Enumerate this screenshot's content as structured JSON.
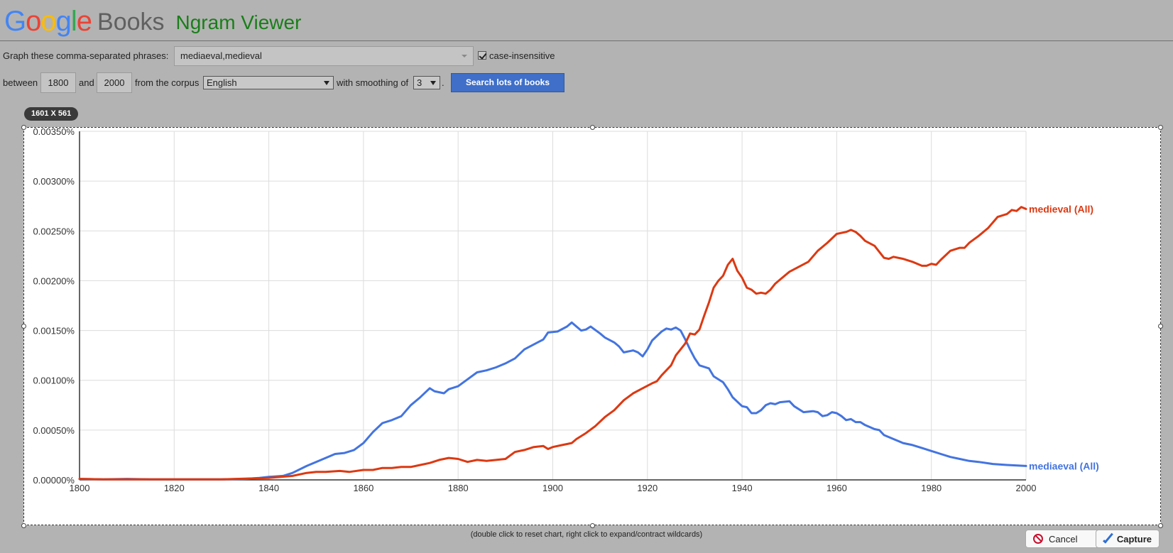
{
  "header": {
    "logo_letters": [
      {
        "ch": "G",
        "color": "#4285f4"
      },
      {
        "ch": "o",
        "color": "#ea4335"
      },
      {
        "ch": "o",
        "color": "#fbbc05"
      },
      {
        "ch": "g",
        "color": "#4285f4"
      },
      {
        "ch": "l",
        "color": "#34a853"
      },
      {
        "ch": "e",
        "color": "#ea4335"
      }
    ],
    "books": "Books",
    "ngram": "Ngram Viewer"
  },
  "form": {
    "phrases_label": "Graph these comma-separated phrases:",
    "phrases_value": "mediaeval,medieval",
    "case_insensitive_label": "case-insensitive",
    "case_insensitive_checked": true,
    "between_label": "between",
    "year_start": "1800",
    "and_label": "and",
    "year_end": "2000",
    "corpus_label": "from the corpus",
    "corpus_value": "English",
    "smoothing_label": "with smoothing of",
    "smoothing_value": "3",
    "period": ".",
    "search_button": "Search lots of books"
  },
  "capture": {
    "dimensions_badge": "1601 X 561",
    "hint": "(double click to reset chart, right click to expand/contract wildcards)",
    "cancel_label": "Cancel",
    "capture_label": "Capture"
  },
  "colors": {
    "mediaeval": "#4374e0",
    "medieval": "#dc3912",
    "grid": "#dcdcdc"
  },
  "chart_data": {
    "type": "line",
    "x_range": [
      1800,
      2000
    ],
    "y_range": [
      0,
      0.0035
    ],
    "y_unit": "%",
    "x_ticks": [
      1800,
      1820,
      1840,
      1860,
      1880,
      1900,
      1920,
      1940,
      1960,
      1980,
      2000
    ],
    "y_ticks": [
      "0.00000%",
      "0.00050%",
      "0.00100%",
      "0.00150%",
      "0.00200%",
      "0.00250%",
      "0.00300%",
      "0.00350%"
    ],
    "grid": true,
    "legend": "line-end labels",
    "series": [
      {
        "name": "mediaeval (All)",
        "color": "#4374e0",
        "points": [
          [
            1800,
            1e-05
          ],
          [
            1805,
            5e-06
          ],
          [
            1810,
            1e-05
          ],
          [
            1815,
            5e-06
          ],
          [
            1820,
            5e-06
          ],
          [
            1825,
            5e-06
          ],
          [
            1830,
            5e-06
          ],
          [
            1835,
            1e-05
          ],
          [
            1838,
            2e-05
          ],
          [
            1840,
            3e-05
          ],
          [
            1843,
            4e-05
          ],
          [
            1845,
            7e-05
          ],
          [
            1848,
            0.00014
          ],
          [
            1850,
            0.00018
          ],
          [
            1852,
            0.00022
          ],
          [
            1854,
            0.00026
          ],
          [
            1856,
            0.00027
          ],
          [
            1858,
            0.0003
          ],
          [
            1860,
            0.00037
          ],
          [
            1862,
            0.00048
          ],
          [
            1864,
            0.00057
          ],
          [
            1866,
            0.0006
          ],
          [
            1868,
            0.00064
          ],
          [
            1870,
            0.00075
          ],
          [
            1872,
            0.00083
          ],
          [
            1874,
            0.00092
          ],
          [
            1875,
            0.00089
          ],
          [
            1877,
            0.00087
          ],
          [
            1878,
            0.00091
          ],
          [
            1880,
            0.00094
          ],
          [
            1882,
            0.00101
          ],
          [
            1884,
            0.00108
          ],
          [
            1886,
            0.0011
          ],
          [
            1888,
            0.00113
          ],
          [
            1890,
            0.00117
          ],
          [
            1892,
            0.00122
          ],
          [
            1894,
            0.00131
          ],
          [
            1896,
            0.00136
          ],
          [
            1898,
            0.00141
          ],
          [
            1899,
            0.00148
          ],
          [
            1901,
            0.00149
          ],
          [
            1903,
            0.00154
          ],
          [
            1904,
            0.00158
          ],
          [
            1906,
            0.0015
          ],
          [
            1907,
            0.00151
          ],
          [
            1908,
            0.00154
          ],
          [
            1910,
            0.00147
          ],
          [
            1911,
            0.00143
          ],
          [
            1913,
            0.00138
          ],
          [
            1914,
            0.00134
          ],
          [
            1915,
            0.00128
          ],
          [
            1917,
            0.0013
          ],
          [
            1918,
            0.00128
          ],
          [
            1919,
            0.00124
          ],
          [
            1920,
            0.00131
          ],
          [
            1921,
            0.0014
          ],
          [
            1923,
            0.00149
          ],
          [
            1924,
            0.00152
          ],
          [
            1925,
            0.00151
          ],
          [
            1926,
            0.00153
          ],
          [
            1927,
            0.0015
          ],
          [
            1928,
            0.00141
          ],
          [
            1929,
            0.00131
          ],
          [
            1930,
            0.00122
          ],
          [
            1931,
            0.00115
          ],
          [
            1933,
            0.00112
          ],
          [
            1934,
            0.00104
          ],
          [
            1936,
            0.00098
          ],
          [
            1937,
            0.00091
          ],
          [
            1938,
            0.00083
          ],
          [
            1940,
            0.00074
          ],
          [
            1941,
            0.00073
          ],
          [
            1942,
            0.00067
          ],
          [
            1943,
            0.00067
          ],
          [
            1944,
            0.0007
          ],
          [
            1945,
            0.00075
          ],
          [
            1946,
            0.00077
          ],
          [
            1947,
            0.00076
          ],
          [
            1948,
            0.00078
          ],
          [
            1950,
            0.00079
          ],
          [
            1951,
            0.00074
          ],
          [
            1953,
            0.00068
          ],
          [
            1955,
            0.00069
          ],
          [
            1956,
            0.00068
          ],
          [
            1957,
            0.00064
          ],
          [
            1958,
            0.00065
          ],
          [
            1959,
            0.00068
          ],
          [
            1960,
            0.00067
          ],
          [
            1961,
            0.00064
          ],
          [
            1962,
            0.0006
          ],
          [
            1963,
            0.00061
          ],
          [
            1964,
            0.00058
          ],
          [
            1965,
            0.00058
          ],
          [
            1966,
            0.00055
          ],
          [
            1968,
            0.00051
          ],
          [
            1969,
            0.0005
          ],
          [
            1970,
            0.00045
          ],
          [
            1972,
            0.00041
          ],
          [
            1974,
            0.00037
          ],
          [
            1976,
            0.00035
          ],
          [
            1978,
            0.00032
          ],
          [
            1980,
            0.00029
          ],
          [
            1982,
            0.00026
          ],
          [
            1984,
            0.00023
          ],
          [
            1986,
            0.00021
          ],
          [
            1988,
            0.00019
          ],
          [
            1990,
            0.00018
          ],
          [
            1993,
            0.00016
          ],
          [
            1996,
            0.00015
          ],
          [
            2000,
            0.00014
          ]
        ]
      },
      {
        "name": "medieval (All)",
        "color": "#dc3912",
        "points": [
          [
            1800,
            1e-05
          ],
          [
            1805,
            5e-06
          ],
          [
            1810,
            5e-06
          ],
          [
            1820,
            5e-06
          ],
          [
            1830,
            5e-06
          ],
          [
            1840,
            2e-05
          ],
          [
            1845,
            4e-05
          ],
          [
            1848,
            7e-05
          ],
          [
            1850,
            8e-05
          ],
          [
            1852,
            8e-05
          ],
          [
            1855,
            9e-05
          ],
          [
            1857,
            8e-05
          ],
          [
            1860,
            0.0001
          ],
          [
            1862,
            0.0001
          ],
          [
            1864,
            0.00012
          ],
          [
            1866,
            0.00012
          ],
          [
            1868,
            0.00013
          ],
          [
            1870,
            0.00013
          ],
          [
            1872,
            0.00015
          ],
          [
            1874,
            0.00017
          ],
          [
            1876,
            0.0002
          ],
          [
            1878,
            0.00022
          ],
          [
            1880,
            0.00021
          ],
          [
            1882,
            0.00018
          ],
          [
            1884,
            0.0002
          ],
          [
            1886,
            0.00019
          ],
          [
            1888,
            0.0002
          ],
          [
            1890,
            0.00021
          ],
          [
            1892,
            0.00028
          ],
          [
            1894,
            0.0003
          ],
          [
            1896,
            0.00033
          ],
          [
            1898,
            0.00034
          ],
          [
            1899,
            0.00031
          ],
          [
            1900,
            0.00033
          ],
          [
            1902,
            0.00035
          ],
          [
            1904,
            0.00037
          ],
          [
            1905,
            0.00041
          ],
          [
            1907,
            0.00047
          ],
          [
            1909,
            0.00054
          ],
          [
            1911,
            0.00063
          ],
          [
            1913,
            0.0007
          ],
          [
            1915,
            0.0008
          ],
          [
            1917,
            0.00087
          ],
          [
            1919,
            0.00092
          ],
          [
            1921,
            0.00097
          ],
          [
            1922,
            0.00099
          ],
          [
            1923,
            0.00105
          ],
          [
            1925,
            0.00115
          ],
          [
            1926,
            0.00125
          ],
          [
            1927,
            0.00131
          ],
          [
            1928,
            0.00137
          ],
          [
            1929,
            0.00147
          ],
          [
            1930,
            0.00146
          ],
          [
            1931,
            0.00151
          ],
          [
            1932,
            0.00165
          ],
          [
            1933,
            0.00178
          ],
          [
            1934,
            0.00193
          ],
          [
            1935,
            0.002
          ],
          [
            1936,
            0.00205
          ],
          [
            1937,
            0.00216
          ],
          [
            1938,
            0.00222
          ],
          [
            1939,
            0.0021
          ],
          [
            1940,
            0.00203
          ],
          [
            1941,
            0.00193
          ],
          [
            1942,
            0.00191
          ],
          [
            1943,
            0.00187
          ],
          [
            1944,
            0.00188
          ],
          [
            1945,
            0.00187
          ],
          [
            1946,
            0.00191
          ],
          [
            1947,
            0.00197
          ],
          [
            1948,
            0.00201
          ],
          [
            1950,
            0.00209
          ],
          [
            1952,
            0.00214
          ],
          [
            1954,
            0.00219
          ],
          [
            1956,
            0.0023
          ],
          [
            1958,
            0.00238
          ],
          [
            1960,
            0.00247
          ],
          [
            1962,
            0.00249
          ],
          [
            1963,
            0.00251
          ],
          [
            1964,
            0.00249
          ],
          [
            1965,
            0.00245
          ],
          [
            1966,
            0.0024
          ],
          [
            1968,
            0.00235
          ],
          [
            1970,
            0.00223
          ],
          [
            1971,
            0.00222
          ],
          [
            1972,
            0.00224
          ],
          [
            1974,
            0.00222
          ],
          [
            1976,
            0.00219
          ],
          [
            1978,
            0.00215
          ],
          [
            1979,
            0.00215
          ],
          [
            1980,
            0.00217
          ],
          [
            1981,
            0.00216
          ],
          [
            1982,
            0.00221
          ],
          [
            1984,
            0.0023
          ],
          [
            1986,
            0.00233
          ],
          [
            1987,
            0.00233
          ],
          [
            1988,
            0.00238
          ],
          [
            1990,
            0.00245
          ],
          [
            1992,
            0.00253
          ],
          [
            1994,
            0.00264
          ],
          [
            1996,
            0.00267
          ],
          [
            1997,
            0.00271
          ],
          [
            1998,
            0.0027
          ],
          [
            1999,
            0.00274
          ],
          [
            2000,
            0.00272
          ]
        ]
      }
    ]
  }
}
